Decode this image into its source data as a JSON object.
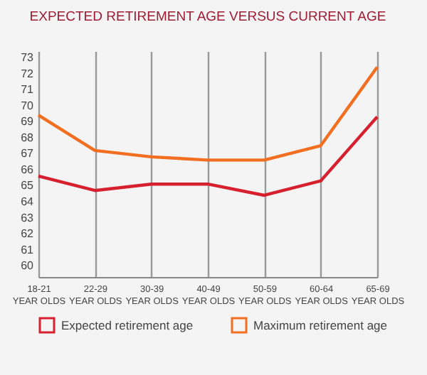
{
  "chart_data": {
    "type": "line",
    "title": "EXPECTED RETIREMENT AGE VERSUS CURRENT AGE",
    "categories": [
      "18-21\nYEAR OLDS",
      "22-29\nYEAR OLDS",
      "30-39\nYEAR OLDS",
      "40-49\nYEAR OLDS",
      "50-59\nYEAR OLDS",
      "60-64\nYEAR OLDS",
      "65-69\nYEAR OLDS"
    ],
    "series": [
      {
        "name": "Expected retirement age",
        "color": "#d7202e",
        "values": [
          65.6,
          64.7,
          65.1,
          65.1,
          64.4,
          65.3,
          69.3
        ]
      },
      {
        "name": "Maximum retirement age",
        "color": "#f26f21",
        "values": [
          69.4,
          67.2,
          66.8,
          66.6,
          66.6,
          67.5,
          72.4
        ]
      }
    ],
    "ylim": [
      59.3,
      73.4
    ],
    "yticks": [
      60,
      61,
      62,
      63,
      64,
      65,
      66,
      67,
      68,
      69,
      70,
      71,
      72,
      73
    ],
    "grid": "x",
    "legend": "bottom",
    "marker": "none",
    "line_style": "solid"
  }
}
